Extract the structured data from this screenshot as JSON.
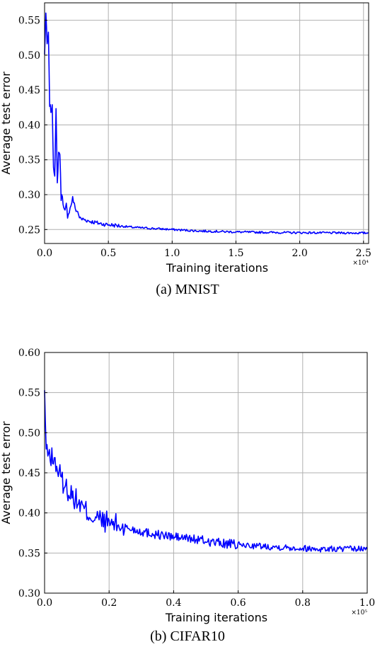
{
  "chart_data": [
    {
      "type": "line",
      "caption": "(a) MNIST",
      "xlabel": "Training iterations",
      "ylabel": "Average test error",
      "x_multiplier": "×10⁴",
      "xlim": [
        0,
        2.54
      ],
      "ylim": [
        0.23,
        0.575
      ],
      "xticks": [
        0,
        0.5,
        1.0,
        1.5,
        2.0,
        2.5
      ],
      "xtick_labels": [
        "0.0",
        "0.5",
        "1.0",
        "1.5",
        "2.0",
        "2.5"
      ],
      "yticks": [
        0.25,
        0.3,
        0.35,
        0.4,
        0.45,
        0.5,
        0.55
      ],
      "ytick_labels": [
        "0.25",
        "0.30",
        "0.35",
        "0.40",
        "0.45",
        "0.50",
        "0.55"
      ],
      "grid": true,
      "line_color": "#0000ff",
      "series": [
        {
          "x": [
            0.0,
            0.01,
            0.02,
            0.03,
            0.04,
            0.05,
            0.06,
            0.07,
            0.08,
            0.09,
            0.1,
            0.11,
            0.12,
            0.13,
            0.14,
            0.15,
            0.16,
            0.17,
            0.18,
            0.2,
            0.22,
            0.24,
            0.26,
            0.28,
            0.3,
            0.35,
            0.4,
            0.45,
            0.5,
            0.6,
            0.7,
            0.8,
            0.9,
            1.0,
            1.1,
            1.2,
            1.3,
            1.4,
            1.5,
            1.6,
            1.7,
            1.8,
            1.9,
            2.0,
            2.1,
            2.2,
            2.3,
            2.4,
            2.5,
            2.54
          ],
          "y": [
            0.5,
            0.56,
            0.515,
            0.53,
            0.43,
            0.42,
            0.425,
            0.34,
            0.33,
            0.42,
            0.315,
            0.36,
            0.36,
            0.295,
            0.3,
            0.28,
            0.275,
            0.285,
            0.27,
            0.28,
            0.295,
            0.28,
            0.275,
            0.265,
            0.265,
            0.262,
            0.26,
            0.258,
            0.257,
            0.255,
            0.253,
            0.252,
            0.251,
            0.25,
            0.249,
            0.248,
            0.2475,
            0.247,
            0.2465,
            0.2462,
            0.246,
            0.2458,
            0.2456,
            0.2455,
            0.2454,
            0.2453,
            0.2452,
            0.2451,
            0.245,
            0.245
          ]
        }
      ]
    },
    {
      "type": "line",
      "caption": "(b) CIFAR10",
      "xlabel": "Training iterations",
      "ylabel": "Average test error",
      "x_multiplier": "×10⁵",
      "xlim": [
        0,
        1.0
      ],
      "ylim": [
        0.3,
        0.6
      ],
      "xticks": [
        0,
        0.2,
        0.4,
        0.6,
        0.8,
        1.0
      ],
      "xtick_labels": [
        "0.0",
        "0.2",
        "0.4",
        "0.6",
        "0.8",
        "1.0"
      ],
      "yticks": [
        0.3,
        0.35,
        0.4,
        0.45,
        0.5,
        0.55,
        0.6
      ],
      "ytick_labels": [
        "0.30",
        "0.35",
        "0.40",
        "0.45",
        "0.50",
        "0.55",
        "0.60"
      ],
      "grid": true,
      "line_color": "#0000ff",
      "series": [
        {
          "x": [
            0.0,
            0.005,
            0.01,
            0.02,
            0.03,
            0.04,
            0.05,
            0.06,
            0.08,
            0.1,
            0.12,
            0.15,
            0.18,
            0.2,
            0.25,
            0.3,
            0.35,
            0.4,
            0.45,
            0.5,
            0.55,
            0.6,
            0.65,
            0.7,
            0.75,
            0.8,
            0.85,
            0.9,
            0.95,
            1.0
          ],
          "y": [
            0.55,
            0.48,
            0.475,
            0.47,
            0.465,
            0.455,
            0.445,
            0.435,
            0.425,
            0.415,
            0.405,
            0.395,
            0.39,
            0.388,
            0.382,
            0.377,
            0.373,
            0.37,
            0.368,
            0.365,
            0.362,
            0.36,
            0.359,
            0.358,
            0.357,
            0.356,
            0.355,
            0.355,
            0.355,
            0.355
          ]
        }
      ]
    }
  ]
}
